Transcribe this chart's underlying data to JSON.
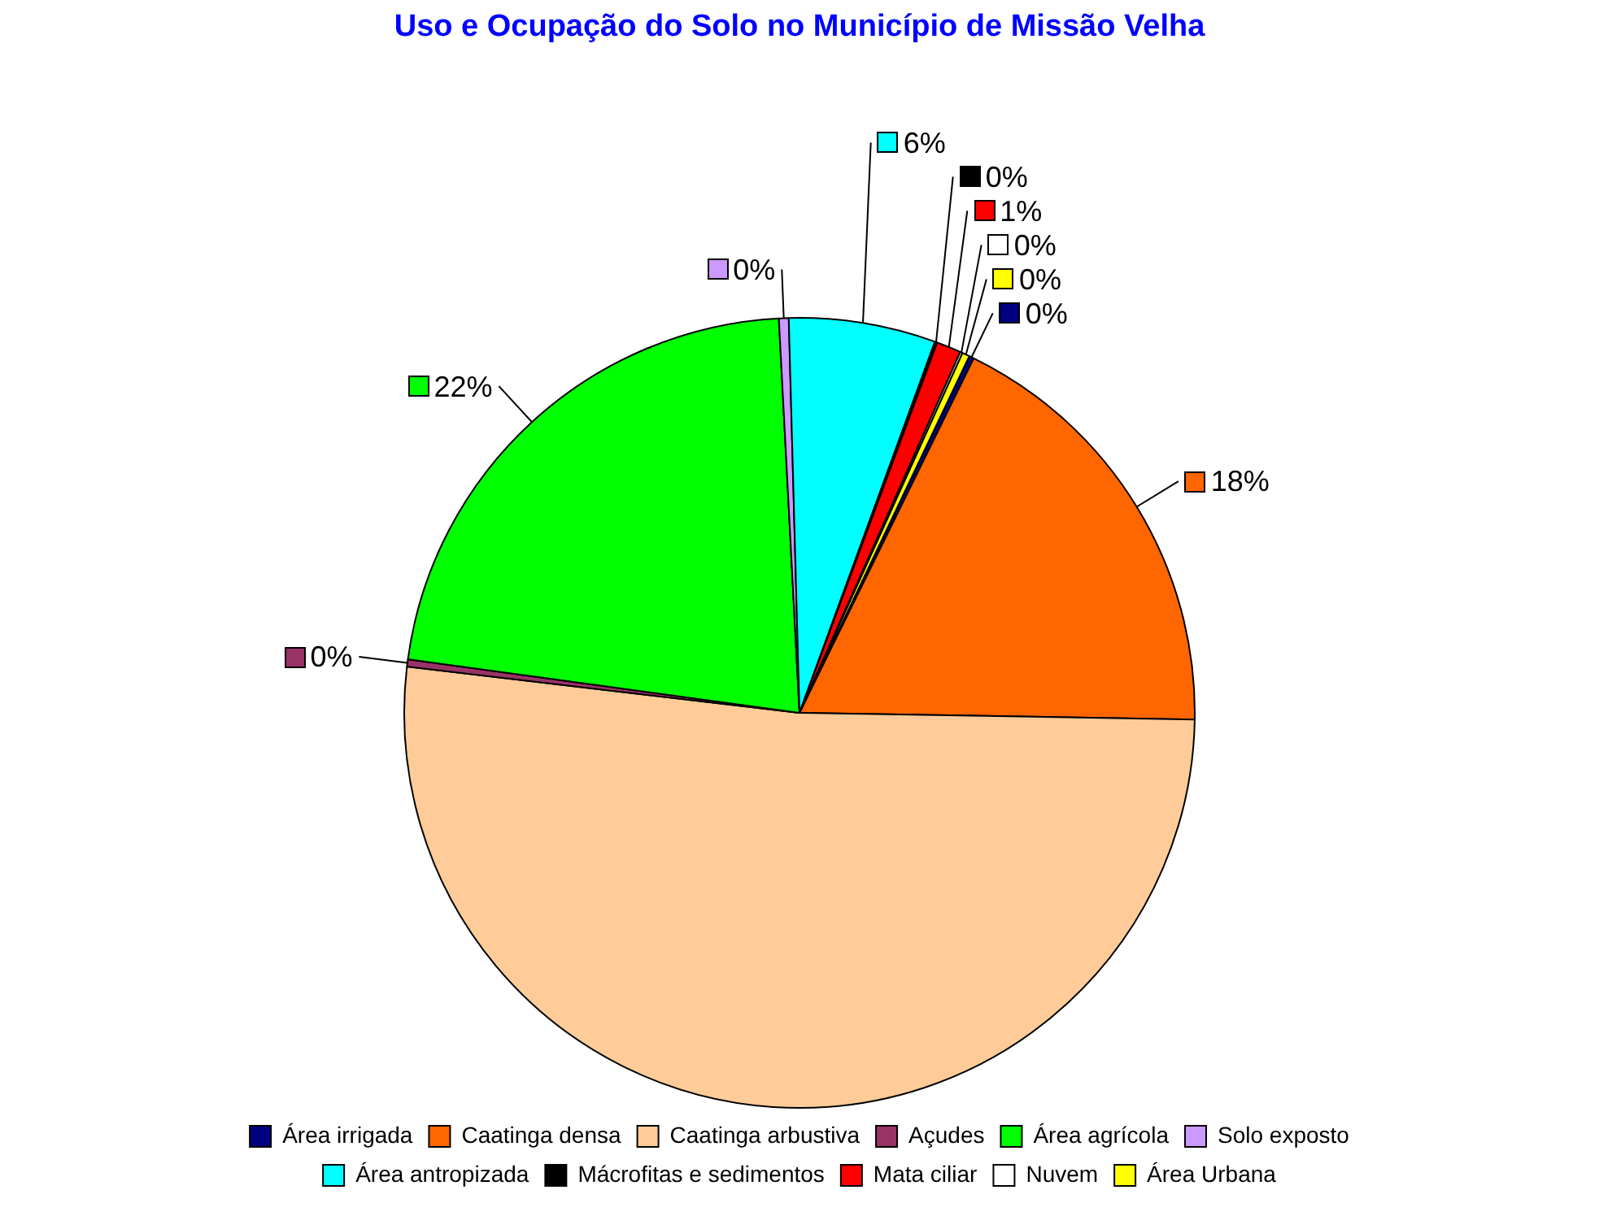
{
  "chart_data": {
    "type": "pie",
    "title": "Uso e Ocupação do Solo no Município de Missão Velha",
    "categories": [
      "Área irrigada",
      "Caatinga densa",
      "Caatinga arbustiva",
      "Açudes",
      "Área agrícola",
      "Solo exposto",
      "Área antropizada",
      "Mácrofitas e sedimentos",
      "Mata ciliar",
      "Nuvem",
      "Área Urbana"
    ],
    "values": [
      0.2,
      18,
      51.6,
      0.3,
      22,
      0.4,
      6,
      0.1,
      1,
      0.1,
      0.3
    ],
    "colors": [
      "#000080",
      "#ff6600",
      "#ffcc99",
      "#993366",
      "#00ff00",
      "#cc99ff",
      "#00ffff",
      "#000000",
      "#ff0000",
      "#ffffff",
      "#ffff00"
    ],
    "value_labels": [
      "0%",
      "18%",
      null,
      "0%",
      "22%",
      "0%",
      "6%",
      "0%",
      "1%",
      "0%",
      "0%"
    ],
    "legend": "bottom"
  }
}
